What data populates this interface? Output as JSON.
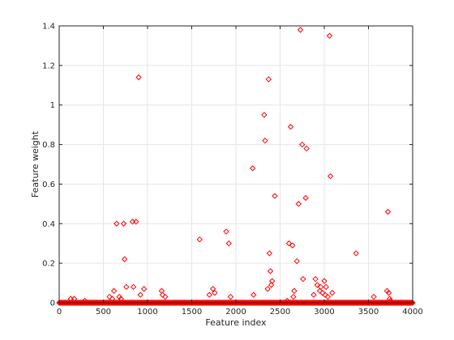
{
  "chart_data": {
    "type": "scatter",
    "title": "",
    "xlabel": "Feature index",
    "ylabel": "Feature weight",
    "xlim": [
      0,
      4000
    ],
    "ylim": [
      0,
      1.4
    ],
    "xticks": [
      "0",
      "500",
      "1000",
      "1500",
      "2000",
      "2500",
      "3000",
      "3500",
      "4000"
    ],
    "yticks": [
      "0",
      "0.2",
      "0.4",
      "0.6",
      "0.8",
      "1",
      "1.2",
      "1.4"
    ],
    "grid": true,
    "legend": "none",
    "marker": "diamond",
    "marker_color": "#ff0000",
    "baseline": {
      "x_range": [
        0,
        4000
      ],
      "y": 0,
      "note_marker_density": "dense"
    },
    "series": [
      {
        "x": [
          130,
          170,
          290,
          570,
          600,
          620,
          650,
          680,
          700,
          730,
          740,
          760,
          830,
          840,
          870,
          900,
          920,
          960,
          990,
          1160,
          1170,
          1200,
          1590,
          1700,
          1740,
          1760,
          1890,
          1920,
          1940,
          2190,
          2200,
          2320,
          2330,
          2360,
          2370,
          2380,
          2390,
          2400,
          2410,
          2440,
          2580,
          2600,
          2620,
          2640,
          2650,
          2660,
          2690,
          2710,
          2730,
          2750,
          2760,
          2790,
          2800,
          2880,
          2900,
          2920,
          2950,
          2960,
          2980,
          3000,
          3010,
          3020,
          3040,
          3060,
          3070,
          3090,
          3360,
          3560,
          3710,
          3720,
          3730,
          3740,
          3750
        ],
        "y": [
          0.02,
          0.02,
          0.01,
          0.03,
          0.02,
          0.06,
          0.4,
          0.03,
          0.02,
          0.4,
          0.22,
          0.08,
          0.41,
          0.08,
          0.41,
          1.14,
          0.04,
          0.07,
          0.0,
          0.06,
          0.04,
          0.03,
          0.32,
          0.04,
          0.07,
          0.05,
          0.36,
          0.3,
          0.03,
          0.68,
          0.04,
          0.95,
          0.82,
          0.07,
          1.13,
          0.25,
          0.16,
          0.09,
          0.11,
          0.54,
          0.01,
          0.3,
          0.89,
          0.29,
          0.03,
          0.06,
          0.21,
          0.5,
          1.38,
          0.8,
          0.12,
          0.53,
          0.78,
          0.04,
          0.12,
          0.09,
          0.06,
          0.08,
          0.05,
          0.11,
          0.04,
          0.08,
          0.03,
          1.35,
          0.64,
          0.05,
          0.25,
          0.03,
          0.06,
          0.46,
          0.05,
          0.02,
          0.01
        ]
      }
    ]
  }
}
